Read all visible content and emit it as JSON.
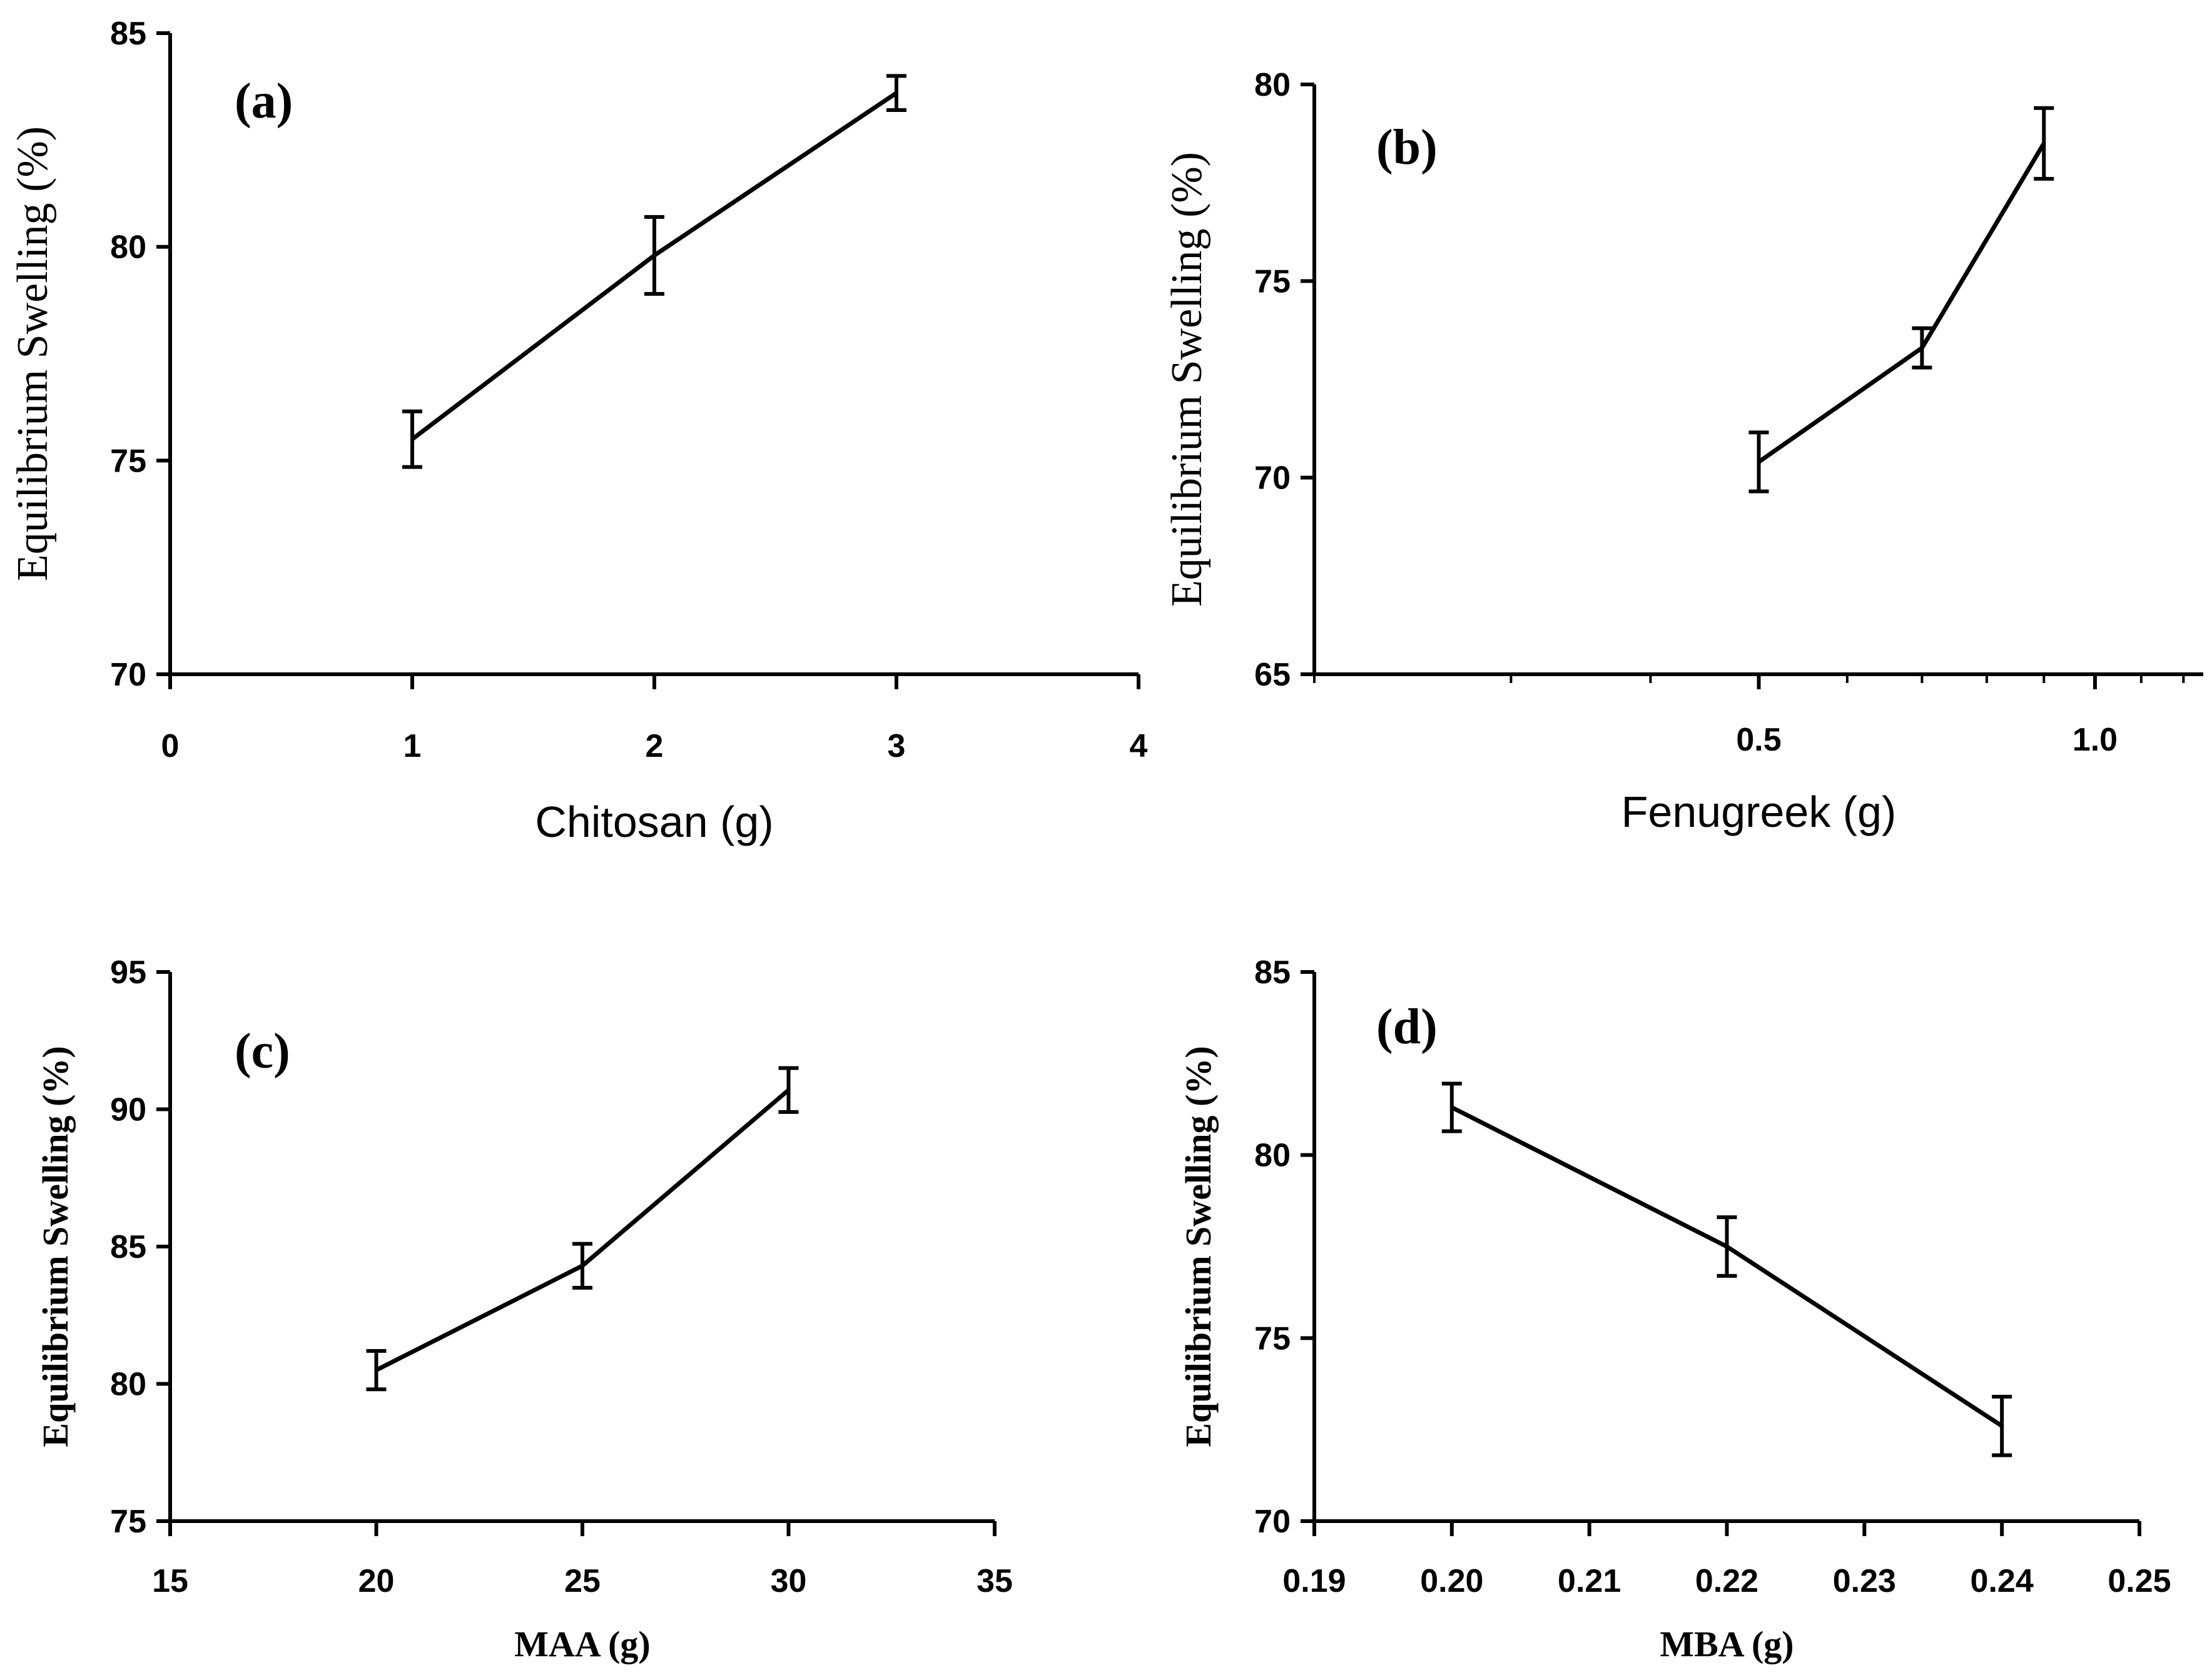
{
  "chart_data": [
    {
      "type": "line",
      "panel_label": "(a)",
      "xlabel": "Chitosan (g)",
      "ylabel": "Equilibrium Swelling (%)",
      "xlim": [
        0,
        4
      ],
      "ylim": [
        70,
        85
      ],
      "xticks": [
        0,
        1,
        2,
        3,
        4
      ],
      "xtick_labels": [
        "0",
        "1",
        "2",
        "3",
        "4"
      ],
      "yticks": [
        70,
        75,
        80,
        85
      ],
      "ytick_labels": [
        "70",
        "75",
        "80",
        "85"
      ],
      "x": [
        1,
        2,
        3
      ],
      "y": [
        75.5,
        79.8,
        83.6
      ],
      "error": [
        0.65,
        0.9,
        0.4
      ]
    },
    {
      "type": "line",
      "panel_label": "(b)",
      "xlabel": "Fenugreek (g)",
      "ylabel": "Equilibrium Swelling (%)",
      "xlim": [
        0.2,
        1.25
      ],
      "ylim": [
        65,
        80
      ],
      "xscale": "log",
      "xticks": [
        0.5,
        1.0
      ],
      "xtick_labels": [
        "0.5",
        "1.0"
      ],
      "minor_xticks": [
        0.2,
        0.3,
        0.4,
        0.6,
        0.7,
        0.8,
        0.9,
        1.1,
        1.2
      ],
      "yticks": [
        65,
        70,
        75,
        80
      ],
      "ytick_labels": [
        "65",
        "70",
        "75",
        "80"
      ],
      "x": [
        0.5,
        0.7,
        0.9
      ],
      "y": [
        70.4,
        73.3,
        78.5
      ],
      "error": [
        0.75,
        0.5,
        0.9
      ]
    },
    {
      "type": "line",
      "panel_label": "(c)",
      "xlabel": "MAA (g)",
      "ylabel": "Equilibrium Swelling (%)",
      "xlim": [
        15,
        35
      ],
      "ylim": [
        75,
        95
      ],
      "xticks": [
        15,
        20,
        25,
        30,
        35
      ],
      "xtick_labels": [
        "15",
        "20",
        "25",
        "30",
        "35"
      ],
      "yticks": [
        75,
        80,
        85,
        90,
        95
      ],
      "ytick_labels": [
        "75",
        "80",
        "85",
        "90",
        "95"
      ],
      "x": [
        20,
        25,
        30
      ],
      "y": [
        80.5,
        84.3,
        90.7
      ],
      "error": [
        0.7,
        0.8,
        0.8
      ]
    },
    {
      "type": "line",
      "panel_label": "(d)",
      "xlabel": "MBA (g)",
      "ylabel": "Equilibrium Swelling (%)",
      "xlim": [
        0.19,
        0.25
      ],
      "ylim": [
        70,
        85
      ],
      "xticks": [
        0.19,
        0.2,
        0.21,
        0.22,
        0.23,
        0.24,
        0.25
      ],
      "xtick_labels": [
        "0.19",
        "0.20",
        "0.21",
        "0.22",
        "0.23",
        "0.24",
        "0.25"
      ],
      "yticks": [
        70,
        75,
        80,
        85
      ],
      "ytick_labels": [
        "70",
        "75",
        "80",
        "85"
      ],
      "x": [
        0.2,
        0.22,
        0.24
      ],
      "y": [
        81.3,
        77.5,
        72.6
      ],
      "error": [
        0.65,
        0.8,
        0.8
      ]
    }
  ]
}
